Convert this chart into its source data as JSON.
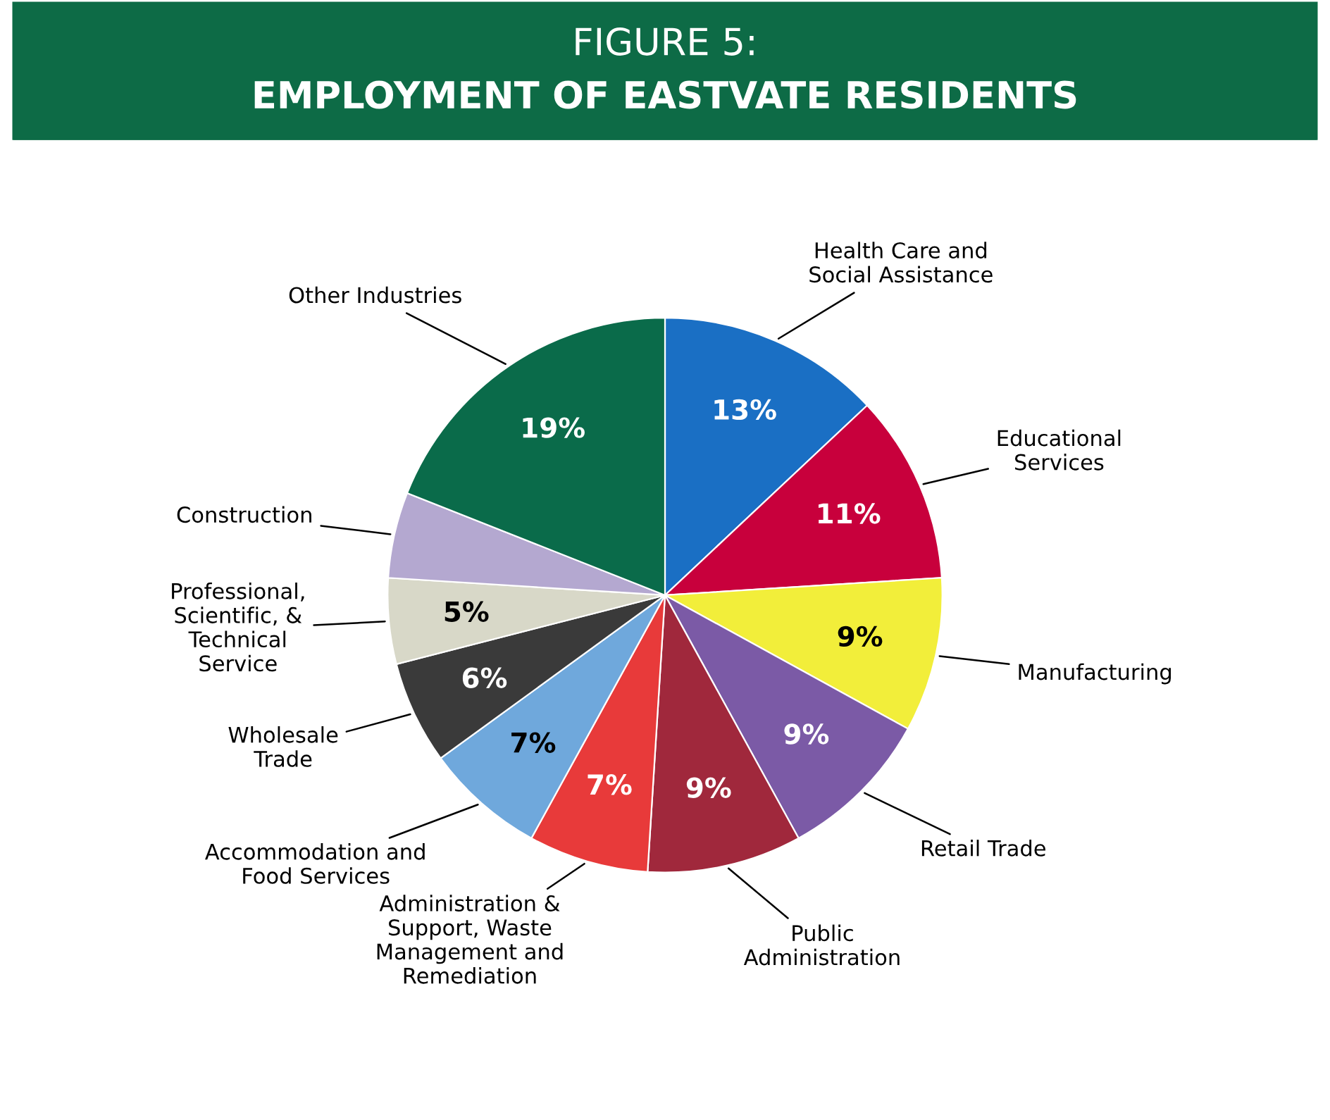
{
  "chart_data": {
    "type": "pie",
    "title": "FIGURE 5:",
    "subtitle": "EMPLOYMENT OF EASTVATE RESIDENTS",
    "categories": [
      "Health Care and\nSocial Assistance",
      "Educational\nServices",
      "Manufacturing",
      "Retail Trade",
      "Public\nAdministration",
      "Administration &\nSupport, Waste\nManagement and\nRemediation",
      "Accommodation and\nFood Services",
      "Wholesale\nTrade",
      "Professional,\nScientific, &\nTechnical\nService",
      "Construction",
      "Other Industries"
    ],
    "values": [
      13,
      11,
      9,
      9,
      9,
      7,
      7,
      6,
      5,
      5,
      19
    ],
    "value_labels": [
      "13%",
      "11%",
      "9%",
      "9%",
      "9%",
      "7%",
      "7%",
      "6%",
      "5%",
      null,
      "19%"
    ],
    "colors": [
      "#1a6fc4",
      "#c8003c",
      "#f2ee3a",
      "#7b5aa6",
      "#a0283c",
      "#e83a3a",
      "#6fa8dc",
      "#3a3a3a",
      "#d8d8c8",
      "#b4a8d0",
      "#0a6b4a"
    ]
  }
}
